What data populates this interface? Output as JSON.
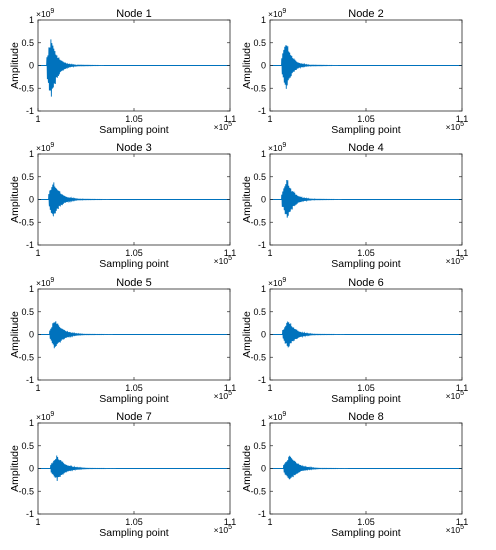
{
  "figure": {
    "line_color": "#0072BD",
    "axes_color": "#262626"
  },
  "chart_data": [
    {
      "type": "line",
      "title": "Node 1",
      "xlabel": "Sampling point",
      "ylabel": "Amplitude",
      "xlim": [
        100000,
        110000
      ],
      "ylim": [
        -1000000000.0,
        1000000000.0
      ],
      "xticks": [
        100000,
        105000,
        110000
      ],
      "xtick_labels": [
        "1",
        "1.05",
        "1.1"
      ],
      "x_exponent": "×10^5",
      "yticks": [
        -1000000000.0,
        -500000000.0,
        0,
        500000000.0,
        1000000000.0
      ],
      "ytick_labels": [
        "-1",
        "-0.5",
        "0",
        "0.5",
        "1"
      ],
      "y_exponent": "×10^9",
      "grid": false,
      "signal": {
        "onset": 100000,
        "burst_start": 100450,
        "peak": 100680,
        "peak_amplitude": 650000000.0,
        "min_amplitude": -870000000.0,
        "decay_end": 102000
      }
    },
    {
      "type": "line",
      "title": "Node 2",
      "xlabel": "Sampling point",
      "ylabel": "Amplitude",
      "xlim": [
        100000,
        110000
      ],
      "ylim": [
        -1000000000.0,
        1000000000.0
      ],
      "xticks": [
        100000,
        105000,
        110000
      ],
      "xtick_labels": [
        "1",
        "1.05",
        "1.1"
      ],
      "x_exponent": "×10^5",
      "yticks": [
        -1000000000.0,
        -500000000.0,
        0,
        500000000.0,
        1000000000.0
      ],
      "ytick_labels": [
        "-1",
        "-0.5",
        "0",
        "0.5",
        "1"
      ],
      "y_exponent": "×10^9",
      "grid": false,
      "signal": {
        "onset": 100000,
        "burst_start": 100600,
        "peak": 100850,
        "peak_amplitude": 620000000.0,
        "min_amplitude": -600000000.0,
        "decay_end": 102100
      }
    },
    {
      "type": "line",
      "title": "Node 3",
      "xlabel": "Sampling point",
      "ylabel": "Amplitude",
      "xlim": [
        100000,
        110000
      ],
      "ylim": [
        -1000000000.0,
        1000000000.0
      ],
      "xticks": [
        100000,
        105000,
        110000
      ],
      "xtick_labels": [
        "1",
        "1.05",
        "1.1"
      ],
      "x_exponent": "×10^5",
      "yticks": [
        -1000000000.0,
        -500000000.0,
        0,
        500000000.0,
        1000000000.0
      ],
      "ytick_labels": [
        "-1",
        "-0.5",
        "0",
        "0.5",
        "1"
      ],
      "y_exponent": "×10^9",
      "grid": false,
      "signal": {
        "onset": 100000,
        "burst_start": 100550,
        "peak": 100800,
        "peak_amplitude": 480000000.0,
        "min_amplitude": -460000000.0,
        "decay_end": 102300
      }
    },
    {
      "type": "line",
      "title": "Node 4",
      "xlabel": "Sampling point",
      "ylabel": "Amplitude",
      "xlim": [
        100000,
        110000
      ],
      "ylim": [
        -1000000000.0,
        1000000000.0
      ],
      "xticks": [
        100000,
        105000,
        110000
      ],
      "xtick_labels": [
        "1",
        "1.05",
        "1.1"
      ],
      "x_exponent": "×10^5",
      "yticks": [
        -1000000000.0,
        -500000000.0,
        0,
        500000000.0,
        1000000000.0
      ],
      "ytick_labels": [
        "-1",
        "-0.5",
        "0",
        "0.5",
        "1"
      ],
      "y_exponent": "×10^9",
      "grid": false,
      "signal": {
        "onset": 100000,
        "burst_start": 100600,
        "peak": 100900,
        "peak_amplitude": 500000000.0,
        "min_amplitude": -480000000.0,
        "decay_end": 102300
      }
    },
    {
      "type": "line",
      "title": "Node 5",
      "xlabel": "Sampling point",
      "ylabel": "Amplitude",
      "xlim": [
        100000,
        110000
      ],
      "ylim": [
        -1000000000.0,
        1000000000.0
      ],
      "xticks": [
        100000,
        105000,
        110000
      ],
      "xtick_labels": [
        "1",
        "1.05",
        "1.1"
      ],
      "x_exponent": "×10^5",
      "yticks": [
        -1000000000.0,
        -500000000.0,
        0,
        500000000.0,
        1000000000.0
      ],
      "ytick_labels": [
        "-1",
        "-0.5",
        "0",
        "0.5",
        "1"
      ],
      "y_exponent": "×10^9",
      "grid": false,
      "signal": {
        "onset": 100000,
        "burst_start": 100600,
        "peak": 100900,
        "peak_amplitude": 380000000.0,
        "min_amplitude": -360000000.0,
        "decay_end": 102500
      }
    },
    {
      "type": "line",
      "title": "Node 6",
      "xlabel": "Sampling point",
      "ylabel": "Amplitude",
      "xlim": [
        100000,
        110000
      ],
      "ylim": [
        -1000000000.0,
        1000000000.0
      ],
      "xticks": [
        100000,
        105000,
        110000
      ],
      "xtick_labels": [
        "1",
        "1.05",
        "1.1"
      ],
      "x_exponent": "×10^5",
      "yticks": [
        -1000000000.0,
        -500000000.0,
        0,
        500000000.0,
        1000000000.0
      ],
      "ytick_labels": [
        "-1",
        "-0.5",
        "0",
        "0.5",
        "1"
      ],
      "y_exponent": "×10^9",
      "grid": false,
      "signal": {
        "onset": 100000,
        "burst_start": 100650,
        "peak": 100950,
        "peak_amplitude": 360000000.0,
        "min_amplitude": -340000000.0,
        "decay_end": 102500
      }
    },
    {
      "type": "line",
      "title": "Node 7",
      "xlabel": "Sampling point",
      "ylabel": "Amplitude",
      "xlim": [
        100000,
        110000
      ],
      "ylim": [
        -1000000000.0,
        1000000000.0
      ],
      "xticks": [
        100000,
        105000,
        110000
      ],
      "xtick_labels": [
        "1",
        "1.05",
        "1.1"
      ],
      "x_exponent": "×10^5",
      "yticks": [
        -1000000000.0,
        -500000000.0,
        0,
        500000000.0,
        1000000000.0
      ],
      "ytick_labels": [
        "-1",
        "-0.5",
        "0",
        "0.5",
        "1"
      ],
      "y_exponent": "×10^9",
      "grid": false,
      "signal": {
        "onset": 100000,
        "burst_start": 100650,
        "peak": 101000,
        "peak_amplitude": 310000000.0,
        "min_amplitude": -290000000.0,
        "decay_end": 102700
      }
    },
    {
      "type": "line",
      "title": "Node 8",
      "xlabel": "Sampling point",
      "ylabel": "Amplitude",
      "xlim": [
        100000,
        110000
      ],
      "ylim": [
        -1000000000.0,
        1000000000.0
      ],
      "xticks": [
        100000,
        105000,
        110000
      ],
      "xtick_labels": [
        "1",
        "1.05",
        "1.1"
      ],
      "x_exponent": "×10^5",
      "yticks": [
        -1000000000.0,
        -500000000.0,
        0,
        500000000.0,
        1000000000.0
      ],
      "ytick_labels": [
        "-1",
        "-0.5",
        "0",
        "0.5",
        "1"
      ],
      "y_exponent": "×10^9",
      "grid": false,
      "signal": {
        "onset": 100000,
        "burst_start": 100700,
        "peak": 101050,
        "peak_amplitude": 330000000.0,
        "min_amplitude": -300000000.0,
        "decay_end": 102700
      }
    }
  ]
}
